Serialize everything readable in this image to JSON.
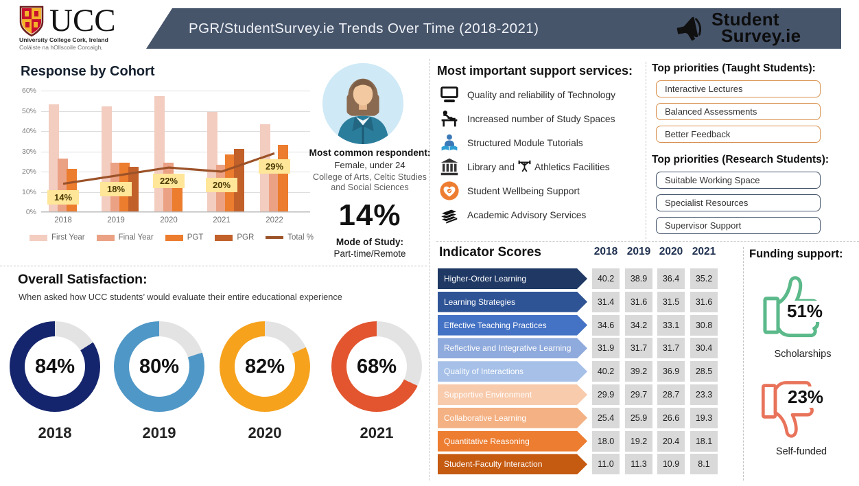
{
  "header": {
    "title": "PGR/StudentSurvey.ie Trends Over Time (2018-2021)",
    "band_color": "#47556b",
    "ucc_logo": {
      "acronym": "UCC",
      "line1": "University College Cork, Ireland",
      "line2": "Coláiste na hOllscoile Corcaigh,"
    },
    "brand": {
      "line1": "Student",
      "line2": "Survey.ie"
    }
  },
  "respondent": {
    "heading": "Most common respondent:",
    "line1": "Female, under 24",
    "line2": "College of Arts, Celtic Studies",
    "line3": "and Social Sciences",
    "stat": "14%",
    "mode_heading": "Mode of Study:",
    "mode_value": "Part-time/Remote"
  },
  "services": {
    "heading": "Most important support services:",
    "items": [
      {
        "icon": "monitor-icon",
        "label": "Quality and reliability of Technology"
      },
      {
        "icon": "study-desk-icon",
        "label": "Increased number of Study Spaces"
      },
      {
        "icon": "reading-person-icon",
        "label": "Structured Module Tutorials"
      },
      {
        "icon": "library-icon",
        "label": "Library and",
        "inline_icon": "weightlifter-icon",
        "label2": "Athletics Facilities"
      },
      {
        "icon": "wellbeing-heart-icon",
        "label": "Student Wellbeing Support"
      },
      {
        "icon": "books-icon",
        "label": "Academic Advisory Services"
      }
    ]
  },
  "priorities_taught": {
    "heading": "Top priorities (Taught Students):",
    "border_color": "#d8904e",
    "items": [
      "Interactive Lectures",
      "Balanced Assessments",
      "Better Feedback"
    ]
  },
  "priorities_research": {
    "heading": "Top priorities (Research Students):",
    "border_color": "#44546a",
    "items": [
      "Suitable Working Space",
      "Specialist Resources",
      "Supervisor Support"
    ]
  },
  "satisfaction": {
    "heading": "Overall Satisfaction:",
    "subtitle": "When asked how UCC students’ would evaluate their entire educational experience"
  },
  "funding": {
    "heading": "Funding support:",
    "up_pct": "51%",
    "up_label": "Scholarships",
    "up_color": "#5bb98a",
    "down_pct": "23%",
    "down_label": "Self-funded",
    "down_color": "#e8735a"
  },
  "chart_data": [
    {
      "type": "bar",
      "title": "Response by Cohort",
      "categories": [
        "2018",
        "2019",
        "2020",
        "2021",
        "2022"
      ],
      "series": [
        {
          "name": "First Year",
          "color": "#f2cdc0",
          "values": [
            53,
            52,
            57,
            49,
            43
          ]
        },
        {
          "name": "Final Year",
          "color": "#eba184",
          "values": [
            26,
            24,
            24,
            23,
            20
          ]
        },
        {
          "name": "PGT",
          "color": "#ec7c2e",
          "values": [
            21,
            24,
            14,
            28,
            33
          ]
        },
        {
          "name": "PGR",
          "color": "#c2602a",
          "values": [
            null,
            22,
            null,
            31,
            null
          ]
        }
      ],
      "line_series": {
        "name": "Total %",
        "color": "#9c5228",
        "values": [
          14,
          18,
          22,
          20,
          29
        ],
        "labels": [
          "14%",
          "18%",
          "22%",
          "20%",
          "29%"
        ]
      },
      "xlabel": "",
      "ylabel": "",
      "ylim": [
        0,
        60
      ],
      "yticks": [
        "60%",
        "50%",
        "40%",
        "30%",
        "20%",
        "10%",
        "0%"
      ],
      "grid": true,
      "legend_position": "bottom"
    },
    {
      "type": "pie",
      "title": "Overall Satisfaction donuts",
      "remainder_color": "#e3e3e3",
      "items": [
        {
          "year": "2018",
          "value": 84,
          "label": "84%",
          "color": "#15256d"
        },
        {
          "year": "2019",
          "value": 80,
          "label": "80%",
          "color": "#4f97c6"
        },
        {
          "year": "2020",
          "value": 82,
          "label": "82%",
          "color": "#f6a21d"
        },
        {
          "year": "2021",
          "value": 68,
          "label": "68%",
          "color": "#e2552f"
        }
      ]
    },
    {
      "type": "table",
      "title": "Indicator Scores",
      "columns": [
        "2018",
        "2019",
        "2020",
        "2021"
      ],
      "rows": [
        {
          "label": "Higher-Order Learning",
          "color": "#1f3864",
          "values": [
            "40.2",
            "38.9",
            "36.4",
            "35.2"
          ]
        },
        {
          "label": "Learning Strategies",
          "color": "#2f5496",
          "values": [
            "31.4",
            "31.6",
            "31.5",
            "31.6"
          ]
        },
        {
          "label": "Effective Teaching Practices",
          "color": "#4472c4",
          "values": [
            "34.6",
            "34.2",
            "33.1",
            "30.8"
          ]
        },
        {
          "label": "Reflective and Integrative Learning",
          "color": "#8faadc",
          "values": [
            "31.9",
            "31.7",
            "31.7",
            "30.4"
          ]
        },
        {
          "label": "Quality of Interactions",
          "color": "#a6c0e8",
          "values": [
            "40.2",
            "39.2",
            "36.9",
            "28.5"
          ]
        },
        {
          "label": "Supportive Environment",
          "color": "#f8cbad",
          "values": [
            "29.9",
            "29.7",
            "28.7",
            "23.3"
          ]
        },
        {
          "label": "Collaborative Learning",
          "color": "#f4b183",
          "values": [
            "25.4",
            "25.9",
            "26.6",
            "19.3"
          ]
        },
        {
          "label": "Quantitative Reasoning",
          "color": "#ed7d31",
          "values": [
            "18.0",
            "19.2",
            "20.4",
            "18.1"
          ]
        },
        {
          "label": "Student-Faculty Interaction",
          "color": "#c55a11",
          "values": [
            "11.0",
            "11.3",
            "10.9",
            "8.1"
          ]
        }
      ]
    }
  ]
}
